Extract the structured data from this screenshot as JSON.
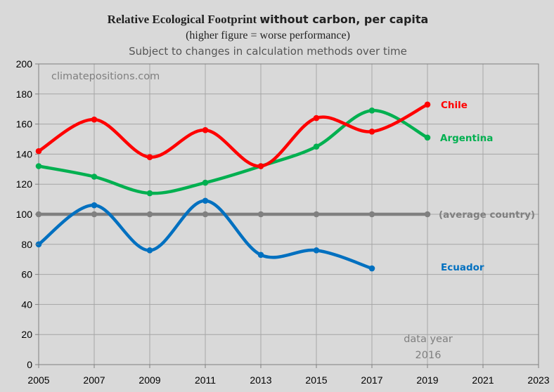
{
  "colors": {
    "background": "#d9d9d9",
    "plot_background": "#d9d9d9",
    "grid": "#a6a6a6",
    "chile": "#ff0000",
    "argentina": "#00b050",
    "average": "#808080",
    "ecuador": "#0070c0"
  },
  "chart_data": {
    "type": "line",
    "title_part1": "Relative Ecological Footprint",
    "title_part2": "without carbon, per capita",
    "subtitle": "(higher figure = worse performance)",
    "subtitle2": "Subject to changes in calculation methods over time",
    "watermark": "climatepositions.com",
    "note_line1": "data year",
    "note_line2": "2016",
    "xlim": [
      2005,
      2023
    ],
    "ylim": [
      0,
      200
    ],
    "x_ticks": [
      "2005",
      "2007",
      "2009",
      "2011",
      "2013",
      "2015",
      "2017",
      "2019",
      "2021",
      "2023"
    ],
    "y_ticks": [
      "0",
      "20",
      "40",
      "60",
      "80",
      "100",
      "120",
      "140",
      "160",
      "180",
      "200"
    ],
    "grid": true,
    "xlabel": "",
    "ylabel": "",
    "series": [
      {
        "name": "Chile",
        "color": "#ff0000",
        "x": [
          2005,
          2007,
          2009,
          2011,
          2013,
          2015,
          2017,
          2019
        ],
        "y": [
          142,
          163,
          138,
          156,
          132,
          164,
          155,
          173
        ]
      },
      {
        "name": "Argentina",
        "color": "#00b050",
        "x": [
          2005,
          2007,
          2009,
          2011,
          2013,
          2015,
          2017,
          2019
        ],
        "y": [
          132,
          125,
          114,
          121,
          132,
          145,
          169,
          151
        ]
      },
      {
        "name": "(average country)",
        "color": "#808080",
        "x": [
          2005,
          2007,
          2009,
          2011,
          2013,
          2015,
          2017,
          2019
        ],
        "y": [
          100,
          100,
          100,
          100,
          100,
          100,
          100,
          100
        ]
      },
      {
        "name": "Ecuador",
        "color": "#0070c0",
        "x": [
          2005,
          2007,
          2009,
          2011,
          2013,
          2015,
          2017
        ],
        "y": [
          80,
          106,
          76,
          109,
          73,
          76,
          64
        ]
      }
    ]
  }
}
